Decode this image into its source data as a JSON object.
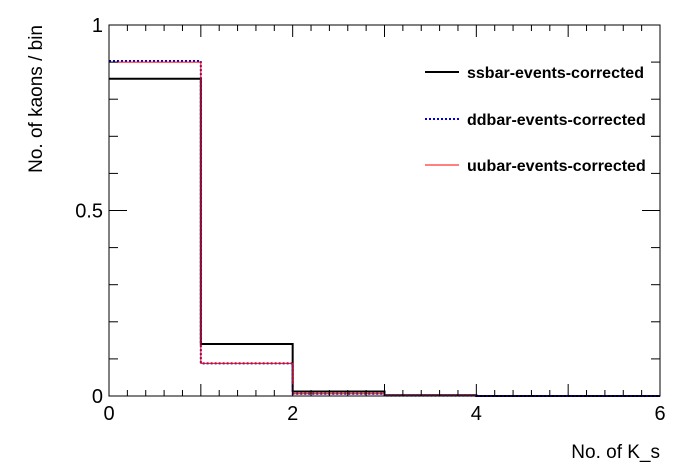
{
  "chart_data": {
    "type": "histogram",
    "xlabel": "No. of K_s",
    "ylabel": "No. of kaons / bin",
    "xlim": [
      0,
      6
    ],
    "ylim": [
      0,
      1
    ],
    "x_ticks": [
      "0",
      "2",
      "4",
      "6"
    ],
    "y_ticks": [
      "0",
      "0.5",
      "1"
    ],
    "bin_edges": [
      0,
      1,
      2,
      3,
      4,
      5,
      6
    ],
    "grid": false,
    "legend_position": "top-right",
    "series": [
      {
        "name": "ssbar-events-corrected",
        "values": [
          0.855,
          0.14,
          0.012,
          0.002,
          0.0,
          0.0
        ],
        "color": "#000000",
        "line_style": "solid"
      },
      {
        "name": "ddbar-events-corrected",
        "values": [
          0.903,
          0.088,
          0.006,
          0.001,
          0.0,
          0.0
        ],
        "color": "#0000cc",
        "line_style": "dotted"
      },
      {
        "name": "uubar-events-corrected",
        "values": [
          0.9,
          0.088,
          0.006,
          0.001,
          0.0,
          0.0
        ],
        "color": "#ff0000",
        "line_style": "solid"
      }
    ]
  }
}
